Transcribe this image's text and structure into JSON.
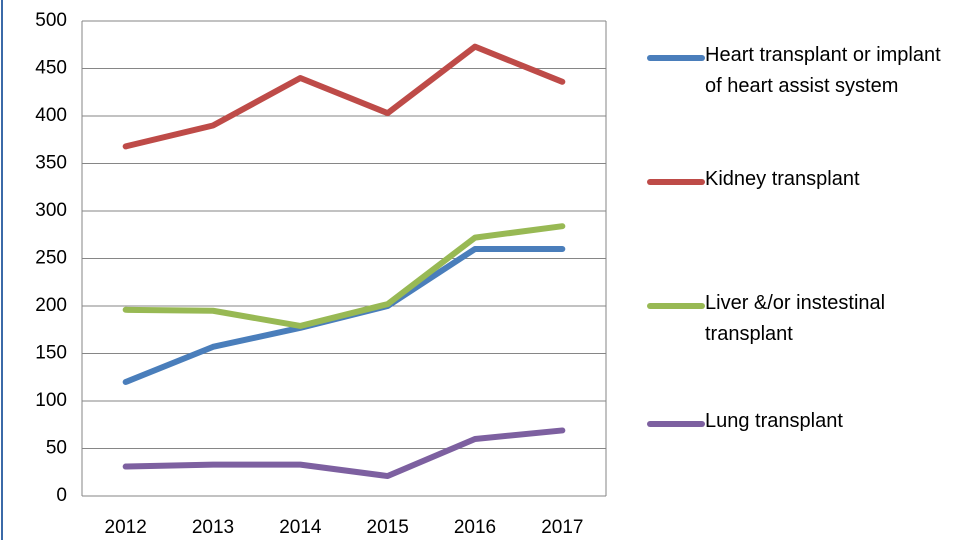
{
  "chart_data": {
    "type": "line",
    "categories": [
      "2012",
      "2013",
      "2014",
      "2015",
      "2016",
      "2017"
    ],
    "series": [
      {
        "name": "Heart transplant or implant of heart assist system",
        "color": "#4a7ebb",
        "values": [
          120,
          157,
          177,
          200,
          260,
          260
        ]
      },
      {
        "name": "Kidney transplant",
        "color": "#be4b48",
        "values": [
          368,
          390,
          440,
          403,
          473,
          436
        ]
      },
      {
        "name": "Liver &/or instestinal transplant",
        "color": "#98b954",
        "values": [
          196,
          195,
          179,
          202,
          272,
          284
        ]
      },
      {
        "name": "Lung transplant",
        "color": "#7d60a0",
        "values": [
          31,
          33,
          33,
          21,
          60,
          69
        ]
      }
    ],
    "ylim": [
      0,
      500
    ],
    "yticks": [
      0,
      50,
      100,
      150,
      200,
      250,
      300,
      350,
      400,
      450,
      500
    ],
    "grid": true,
    "legend": "right"
  }
}
